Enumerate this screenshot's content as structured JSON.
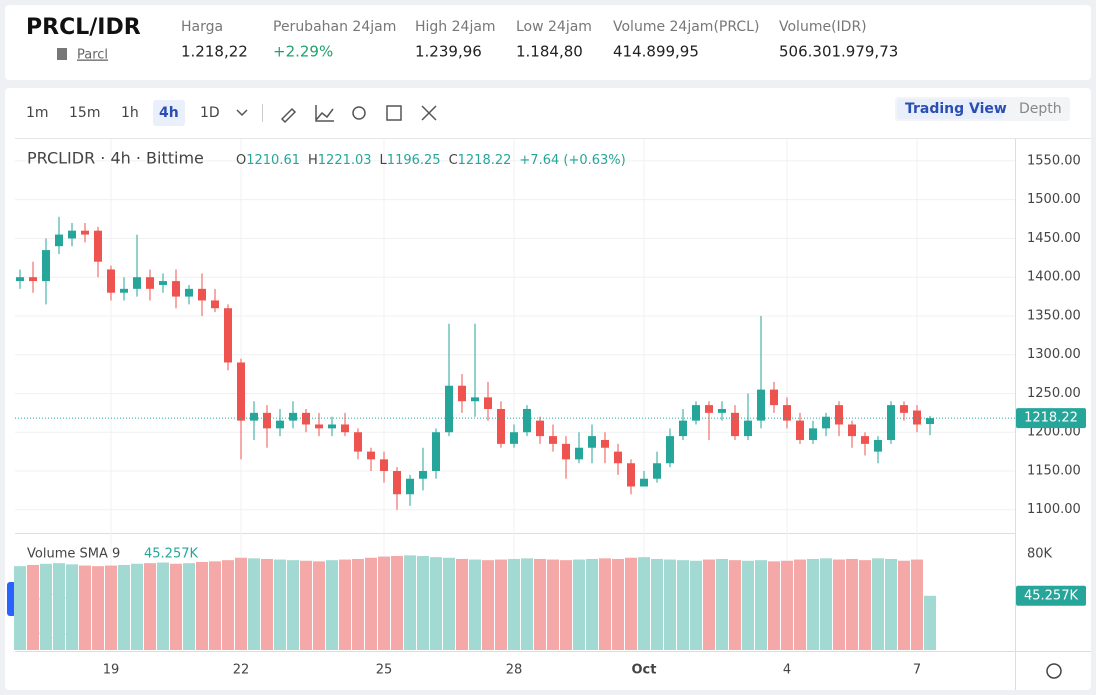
{
  "header": {
    "symbol": "PRCL/IDR",
    "link": "Parcl",
    "stats": [
      {
        "label": "Harga",
        "value": "1.218,22"
      },
      {
        "label": "Perubahan 24jam",
        "value": "+2.29%"
      },
      {
        "label": "High 24jam",
        "value": "1.239,96"
      },
      {
        "label": "Low 24jam",
        "value": "1.184,80"
      },
      {
        "label": "Volume 24jam(PRCL)",
        "value": "414.899,95"
      },
      {
        "label": "Volume(IDR)",
        "value": "506.301.979,73"
      }
    ]
  },
  "toolbar": {
    "intervals": [
      "1m",
      "15m",
      "1h",
      "4h",
      "1D"
    ],
    "active": "4h",
    "views": [
      "Trading View",
      "Depth"
    ]
  },
  "chart_data": {
    "type": "candlestick",
    "title": "PRCLIDR · 4h · Bittime",
    "ohlc": [
      {
        "key": "O",
        "value": "1210.61"
      },
      {
        "key": "H",
        "value": "1221.03"
      },
      {
        "key": "L",
        "value": "1196.25"
      },
      {
        "key": "C",
        "value": "1218.22"
      }
    ],
    "change": "+7.64 (+0.63%)",
    "categories": [
      null,
      null,
      null,
      null,
      null,
      null,
      null,
      "19",
      null,
      null,
      null,
      null,
      null,
      null,
      null,
      null,
      null,
      "22",
      null,
      null,
      null,
      null,
      null,
      null,
      null,
      null,
      null,
      null,
      "25",
      null,
      null,
      null,
      null,
      null,
      null,
      null,
      null,
      null,
      "28",
      null,
      null,
      null,
      null,
      null,
      null,
      null,
      null,
      null,
      "Oct",
      null,
      null,
      null,
      null,
      null,
      null,
      null,
      null,
      null,
      null,
      "4",
      null,
      null,
      null,
      null,
      null,
      null,
      null,
      null,
      null,
      "7",
      null
    ],
    "open": [
      1395,
      1400,
      1395,
      1440,
      1450,
      1460,
      1460,
      1410,
      1380,
      1385,
      1400,
      1390,
      1395,
      1375,
      1385,
      1370,
      1360,
      1290,
      1215,
      1225,
      1205,
      1215,
      1225,
      1210,
      1205,
      1210,
      1200,
      1175,
      1165,
      1150,
      1120,
      1140,
      1150,
      1200,
      1260,
      1240,
      1245,
      1230,
      1185,
      1200,
      1215,
      1195,
      1185,
      1165,
      1180,
      1190,
      1175,
      1160,
      1130,
      1140,
      1160,
      1195,
      1215,
      1235,
      1225,
      1225,
      1195,
      1215,
      1255,
      1235,
      1215,
      1190,
      1205,
      1235,
      1210,
      1195,
      1175,
      1190,
      1235,
      1228,
      1210.61
    ],
    "high": [
      1410,
      1420,
      1450,
      1478,
      1470,
      1470,
      1465,
      1415,
      1400,
      1455,
      1410,
      1405,
      1410,
      1390,
      1405,
      1385,
      1365,
      1295,
      1240,
      1235,
      1230,
      1240,
      1230,
      1225,
      1220,
      1225,
      1205,
      1180,
      1175,
      1155,
      1145,
      1180,
      1205,
      1340,
      1275,
      1340,
      1265,
      1240,
      1210,
      1235,
      1220,
      1210,
      1195,
      1200,
      1210,
      1200,
      1185,
      1165,
      1150,
      1175,
      1205,
      1230,
      1240,
      1240,
      1240,
      1235,
      1250,
      1350,
      1265,
      1245,
      1225,
      1215,
      1225,
      1240,
      1215,
      1200,
      1195,
      1240,
      1240,
      1235,
      1221.03
    ],
    "low": [
      1385,
      1380,
      1365,
      1430,
      1440,
      1445,
      1400,
      1370,
      1370,
      1375,
      1370,
      1380,
      1360,
      1365,
      1350,
      1355,
      1280,
      1165,
      1190,
      1180,
      1195,
      1205,
      1200,
      1195,
      1195,
      1195,
      1165,
      1150,
      1135,
      1100,
      1105,
      1125,
      1140,
      1195,
      1225,
      1220,
      1215,
      1180,
      1180,
      1195,
      1185,
      1175,
      1140,
      1160,
      1160,
      1160,
      1145,
      1120,
      1130,
      1135,
      1155,
      1190,
      1210,
      1190,
      1215,
      1190,
      1190,
      1205,
      1225,
      1205,
      1185,
      1185,
      1195,
      1195,
      1180,
      1170,
      1160,
      1185,
      1215,
      1200,
      1196.25
    ],
    "close": [
      1400,
      1395,
      1435,
      1455,
      1460,
      1455,
      1420,
      1380,
      1385,
      1400,
      1385,
      1395,
      1375,
      1385,
      1370,
      1360,
      1290,
      1215,
      1225,
      1205,
      1215,
      1225,
      1210,
      1205,
      1210,
      1200,
      1175,
      1165,
      1150,
      1120,
      1140,
      1150,
      1200,
      1260,
      1240,
      1245,
      1230,
      1185,
      1200,
      1230,
      1195,
      1185,
      1165,
      1180,
      1195,
      1180,
      1160,
      1130,
      1140,
      1160,
      1195,
      1215,
      1235,
      1225,
      1230,
      1195,
      1215,
      1255,
      1235,
      1215,
      1190,
      1205,
      1220,
      1210,
      1195,
      1185,
      1190,
      1235,
      1225,
      1210,
      1218.22
    ],
    "ylim": [
      1070,
      1577
    ],
    "yticks": [
      {
        "value": 1100,
        "label": "1100.00"
      },
      {
        "value": 1150,
        "label": "1150.00"
      },
      {
        "value": 1200,
        "label": "1200.00"
      },
      {
        "value": 1250,
        "label": "1250.00"
      },
      {
        "value": 1300,
        "label": "1300.00"
      },
      {
        "value": 1350,
        "label": "1350.00"
      },
      {
        "value": 1400,
        "label": "1400.00"
      },
      {
        "value": 1450,
        "label": "1450.00"
      },
      {
        "value": 1500,
        "label": "1500.00"
      },
      {
        "value": 1550,
        "label": "1550.00"
      }
    ],
    "up_color": "#26a69a",
    "down_color": "#ef5350",
    "volume": {
      "title": "Volume SMA 9",
      "last_label": "45.257K",
      "ylim": [
        0,
        96000
      ],
      "yticks": [
        {
          "value": 80000,
          "label": "80K"
        }
      ],
      "values": [
        70000,
        71000,
        72000,
        72500,
        71500,
        70500,
        70000,
        70500,
        71000,
        72000,
        72500,
        73000,
        72000,
        72500,
        73500,
        74000,
        75000,
        77000,
        76500,
        76000,
        75500,
        75000,
        74500,
        74000,
        75000,
        75500,
        76000,
        77000,
        78000,
        78500,
        79000,
        78500,
        77500,
        77000,
        76000,
        75500,
        75000,
        75500,
        76000,
        76500,
        76000,
        75500,
        75000,
        75500,
        76000,
        76500,
        76000,
        77000,
        77500,
        76000,
        75500,
        75000,
        74500,
        75500,
        76000,
        75000,
        74500,
        75000,
        74000,
        74500,
        75500,
        76000,
        76500,
        75500,
        76000,
        75000,
        76500,
        76000,
        74500,
        75500,
        45257
      ]
    }
  }
}
